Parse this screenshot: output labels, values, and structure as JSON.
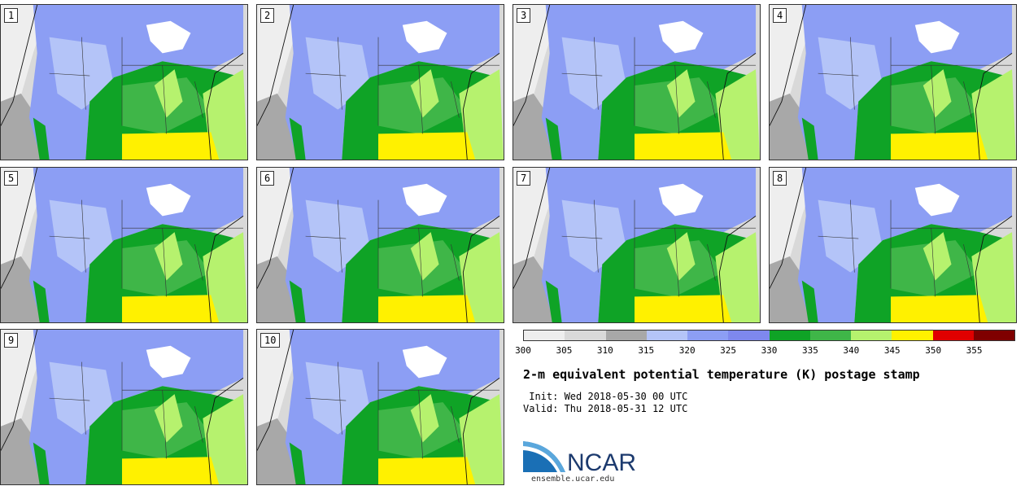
{
  "panels": [
    {
      "label": "1"
    },
    {
      "label": "2"
    },
    {
      "label": "3"
    },
    {
      "label": "4"
    },
    {
      "label": "5"
    },
    {
      "label": "6"
    },
    {
      "label": "7"
    },
    {
      "label": "8"
    },
    {
      "label": "9"
    },
    {
      "label": "10"
    }
  ],
  "colorbar": {
    "colors": [
      "#eeeeee",
      "#d9d9d9",
      "#a8a8a8",
      "#b4c4f8",
      "#8c9ef4",
      "#7e88ee",
      "#0fa326",
      "#3fb648",
      "#b6f26e",
      "#fff100",
      "#e00000",
      "#7f0000"
    ],
    "ticks": [
      "300",
      "305",
      "310",
      "315",
      "320",
      "325",
      "330",
      "335",
      "340",
      "345",
      "350",
      "355"
    ]
  },
  "title": "2-m equivalent potential temperature (K) postage stamp",
  "init": " Init: Wed 2018-05-30 00 UTC",
  "valid": "Valid: Thu 2018-05-31 12 UTC",
  "logo": {
    "text": "NCAR",
    "url": "ensemble.ucar.edu"
  }
}
